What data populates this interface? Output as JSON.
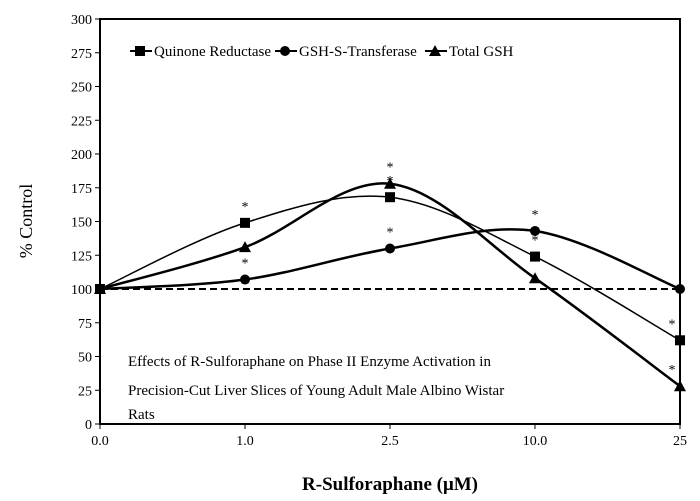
{
  "chart_data": {
    "type": "line",
    "xlabel": "R-Sulforaphane (μM)",
    "ylabel": "% Control",
    "categories": [
      "0.0",
      "1.0",
      "2.5",
      "10.0",
      "25"
    ],
    "ylim": [
      0,
      300
    ],
    "yticks": [
      0,
      25,
      50,
      75,
      100,
      125,
      150,
      175,
      200,
      225,
      250,
      275,
      300
    ],
    "grid": false,
    "legend_position": "top",
    "reference_line": {
      "y": 100,
      "style": "dashed"
    },
    "annotation": "Effects of R-Sulforaphane on Phase II Enzyme Activation in Precision-Cut Liver Slices of Young Adult Male Albino Wistar Rats",
    "annotation_lines": [
      "Effects of R-Sulforaphane on Phase II Enzyme Activation in",
      "Precision-Cut Liver Slices of Young Adult Male Albino Wistar",
      "Rats"
    ],
    "series": [
      {
        "name": "Quinone Reductase",
        "marker": "square",
        "values": [
          100,
          149,
          168,
          124,
          62
        ],
        "significant": [
          false,
          true,
          true,
          true,
          true
        ]
      },
      {
        "name": "GSH-S-Transferase",
        "marker": "circle",
        "values": [
          100,
          107,
          130,
          143,
          100
        ],
        "significant": [
          false,
          true,
          true,
          true,
          false
        ]
      },
      {
        "name": "Total GSH",
        "marker": "triangle",
        "values": [
          100,
          131,
          178,
          108,
          28
        ],
        "significant": [
          false,
          false,
          true,
          false,
          true
        ]
      }
    ],
    "significance_mark": "*",
    "color": "#000000"
  }
}
